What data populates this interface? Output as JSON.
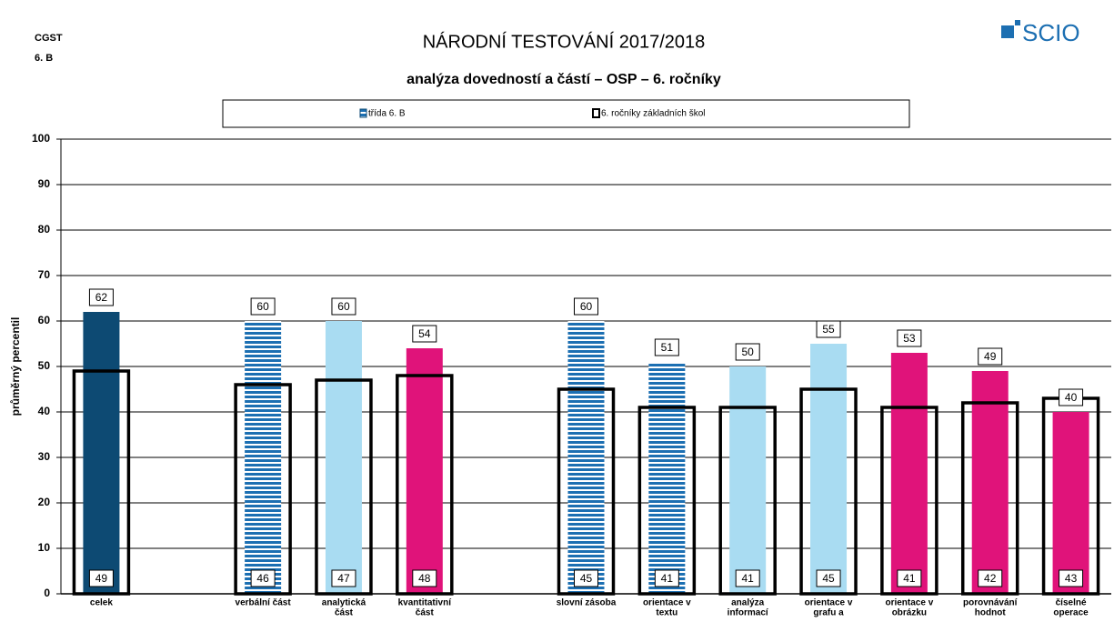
{
  "header": {
    "school": "CGST",
    "class": "6. B",
    "logo": "SCIO"
  },
  "chart_data": {
    "type": "bar",
    "title": "NÁRODNÍ TESTOVÁNÍ 2017/2018",
    "subtitle": "analýza dovedností a částí – OSP – 6. ročníky",
    "ylabel": "průměrný percentil",
    "categories": [
      [
        "celek"
      ],
      null,
      [
        "verbální část"
      ],
      [
        "analytická",
        "část"
      ],
      [
        "kvantitativní",
        "část"
      ],
      null,
      [
        "slovní zásoba"
      ],
      [
        "orientace v",
        "textu"
      ],
      [
        "analýza",
        "informací"
      ],
      [
        "orientace v",
        "grafu a"
      ],
      [
        "orientace v",
        "obrázku"
      ],
      [
        "porovnávání",
        "hodnot"
      ],
      [
        "číselné",
        "operace"
      ]
    ],
    "series": [
      {
        "name": "třída  6. B",
        "color": "#0d4a73",
        "values": [
          62,
          null,
          60,
          60,
          54,
          null,
          60,
          51,
          50,
          55,
          53,
          49,
          40
        ],
        "colors": [
          "#0d4a73",
          null,
          "striped",
          "#a9dcf2",
          "#e0137a",
          null,
          "striped",
          "striped",
          "#a9dcf2",
          "#a9dcf2",
          "#e0137a",
          "#e0137a",
          "#e0137a"
        ]
      },
      {
        "name": "6. ročníky základních škol",
        "color": "#000000",
        "values": [
          49,
          null,
          46,
          47,
          48,
          null,
          45,
          41,
          41,
          45,
          41,
          42,
          43
        ]
      }
    ],
    "ylim": [
      0,
      100
    ],
    "yticks": [
      0,
      10,
      20,
      30,
      40,
      50,
      60,
      70,
      80,
      90,
      100
    ],
    "grid": true,
    "legend": "top"
  }
}
